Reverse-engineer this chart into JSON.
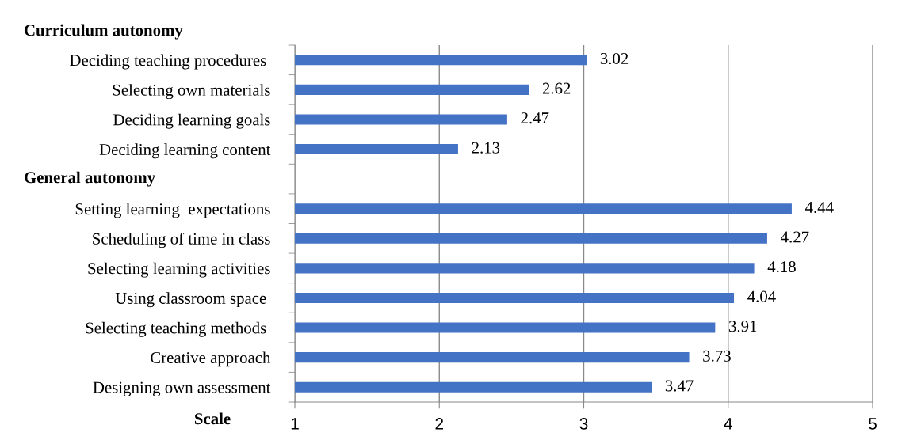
{
  "chart_data": {
    "type": "bar",
    "orientation": "horizontal",
    "categories": [
      "Deciding teaching procedures ",
      "Selecting own materials",
      "Deciding learning goals",
      "Deciding learning content",
      null,
      "Setting learning  expectations",
      "Scheduling of time in class",
      "Selecting learning activities",
      "Using classroom space ",
      "Selecting teaching methods ",
      "Creative approach",
      "Designing own assessment"
    ],
    "values": [
      3.02,
      2.62,
      2.47,
      2.13,
      null,
      4.44,
      4.27,
      4.18,
      4.04,
      3.91,
      3.73,
      3.47
    ],
    "color": "#4472c4",
    "xlim": [
      1,
      5
    ],
    "xticks": [
      1,
      2,
      3,
      4,
      5
    ],
    "xlabel": "Scale",
    "annotations": [
      "Curriculum autonomy",
      "General autonomy"
    ],
    "grid": "x",
    "data_labels": true
  }
}
